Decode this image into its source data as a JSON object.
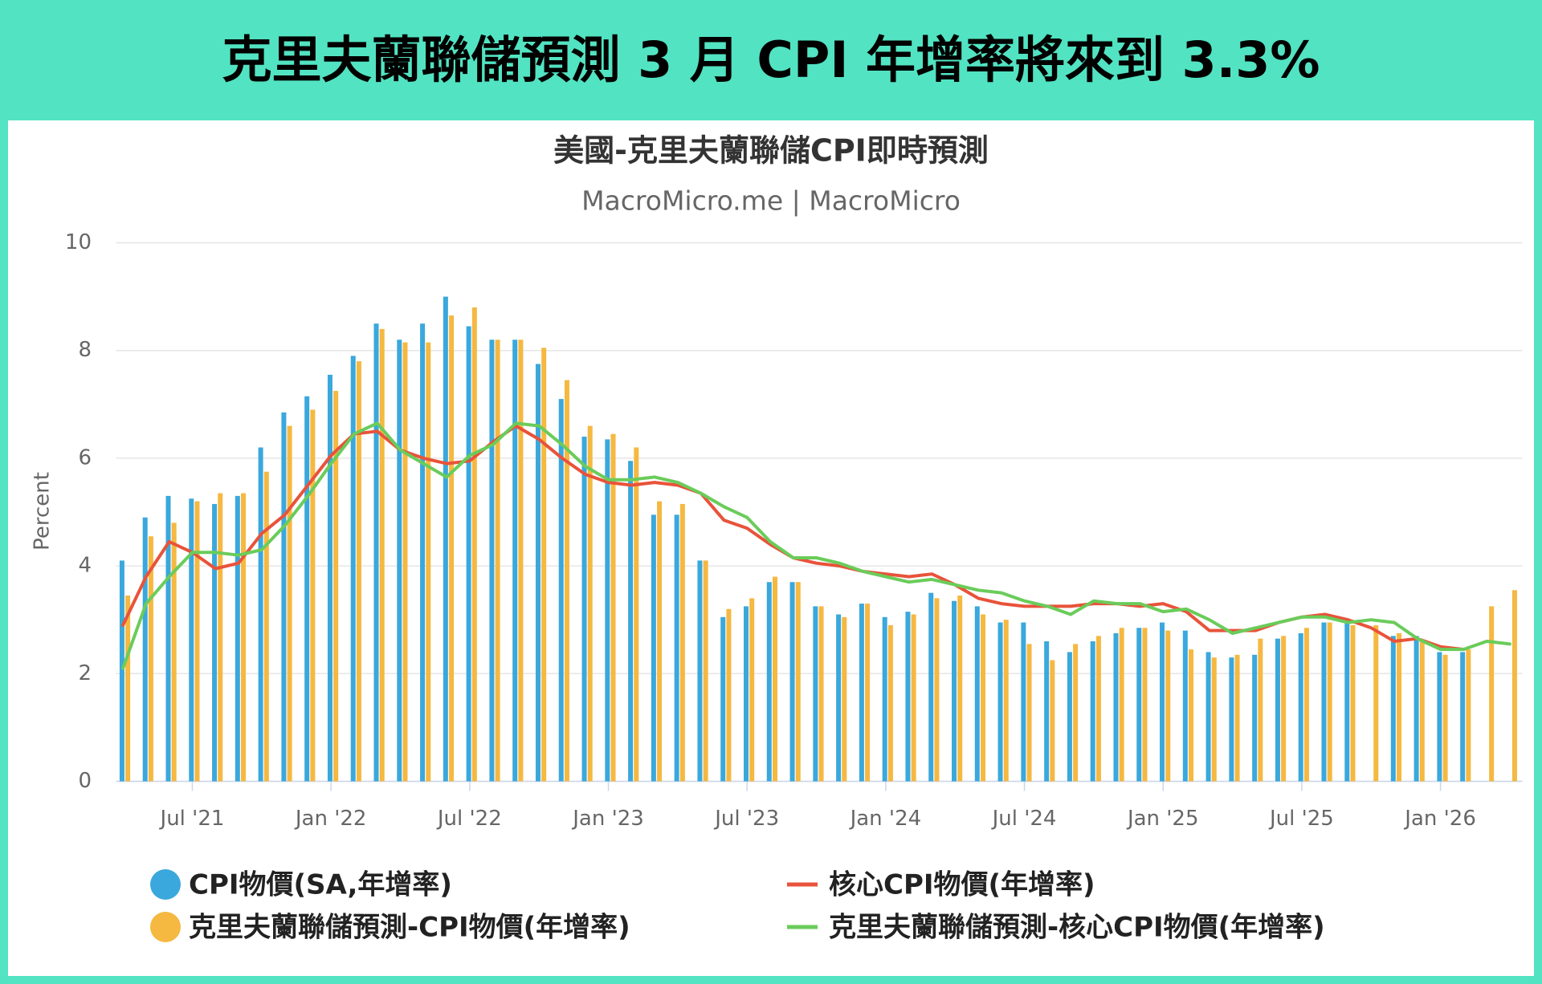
{
  "headline": "克里夫蘭聯儲預測 3 月 CPI 年增率將來到 3.3%",
  "chart_data": {
    "type": "bar",
    "title": "美國-克里夫蘭聯儲CPI即時預測",
    "subtitle": "MacroMicro.me | MacroMicro",
    "y_label": "Percent",
    "ylim": [
      0,
      10
    ],
    "yticks": [
      0,
      2,
      4,
      6,
      8,
      10
    ],
    "grid": true,
    "xticks": [
      {
        "value": "2021-07",
        "label": "Jul '21"
      },
      {
        "value": "2022-01",
        "label": "Jan '22"
      },
      {
        "value": "2022-07",
        "label": "Jul '22"
      },
      {
        "value": "2023-01",
        "label": "Jan '23"
      },
      {
        "value": "2023-07",
        "label": "Jul '23"
      },
      {
        "value": "2024-01",
        "label": "Jan '24"
      },
      {
        "value": "2024-07",
        "label": "Jul '24"
      },
      {
        "value": "2025-01",
        "label": "Jan '25"
      },
      {
        "value": "2025-07",
        "label": "Jul '25"
      },
      {
        "value": "2026-01",
        "label": "Jan '26"
      }
    ],
    "categories": [
      "2021-04",
      "2021-05",
      "2021-06",
      "2021-07",
      "2021-08",
      "2021-09",
      "2021-10",
      "2021-11",
      "2021-12",
      "2022-01",
      "2022-02",
      "2022-03",
      "2022-04",
      "2022-05",
      "2022-06",
      "2022-07",
      "2022-08",
      "2022-09",
      "2022-10",
      "2022-11",
      "2022-12",
      "2023-01",
      "2023-02",
      "2023-03",
      "2023-04",
      "2023-05",
      "2023-06",
      "2023-07",
      "2023-08",
      "2023-09",
      "2023-10",
      "2023-11",
      "2023-12",
      "2024-01",
      "2024-02",
      "2024-03",
      "2024-04",
      "2024-05",
      "2024-06",
      "2024-07",
      "2024-08",
      "2024-09",
      "2024-10",
      "2024-11",
      "2024-12",
      "2025-01",
      "2025-02",
      "2025-03",
      "2025-04",
      "2025-05",
      "2025-06",
      "2025-07",
      "2025-08",
      "2025-09",
      "2025-10",
      "2025-11",
      "2025-12",
      "2026-01",
      "2026-02",
      "2026-03",
      "2026-04"
    ],
    "series": [
      {
        "name": "CPI物價(SA,年增率)",
        "type": "bar",
        "color": "#3aa8dc",
        "values": [
          4.1,
          4.9,
          5.3,
          5.25,
          5.15,
          5.3,
          6.2,
          6.85,
          7.15,
          7.55,
          7.9,
          8.5,
          8.2,
          8.5,
          9.0,
          8.45,
          8.2,
          8.2,
          7.75,
          7.1,
          6.4,
          6.35,
          5.95,
          4.95,
          4.95,
          4.1,
          3.05,
          3.25,
          3.7,
          3.7,
          3.25,
          3.1,
          3.3,
          3.05,
          3.15,
          3.5,
          3.35,
          3.25,
          2.95,
          2.95,
          2.6,
          2.4,
          2.6,
          2.75,
          2.85,
          2.95,
          2.8,
          2.4,
          2.3,
          2.35,
          2.65,
          2.75,
          2.95,
          3.0,
          null,
          2.7,
          2.7,
          2.4,
          2.4,
          null,
          null
        ]
      },
      {
        "name": "克里夫蘭聯儲預測-CPI物價(年增率)",
        "type": "bar",
        "color": "#f5b841",
        "values": [
          3.45,
          4.55,
          4.8,
          5.2,
          5.35,
          5.35,
          5.75,
          6.6,
          6.9,
          7.25,
          7.8,
          8.4,
          8.15,
          8.15,
          8.65,
          8.8,
          8.2,
          8.2,
          8.05,
          7.45,
          6.6,
          6.45,
          6.2,
          5.2,
          5.15,
          4.1,
          3.2,
          3.4,
          3.8,
          3.7,
          3.25,
          3.05,
          3.3,
          2.9,
          3.1,
          3.4,
          3.45,
          3.1,
          3.0,
          2.55,
          2.25,
          2.55,
          2.7,
          2.85,
          2.85,
          2.8,
          2.45,
          2.3,
          2.35,
          2.65,
          2.7,
          2.85,
          2.95,
          2.9,
          2.9,
          2.75,
          2.6,
          2.35,
          2.45,
          3.25,
          3.55
        ]
      },
      {
        "name": "核心CPI物價(年增率)",
        "type": "line",
        "color": "#e8533a",
        "values": [
          2.9,
          3.8,
          4.45,
          4.25,
          3.95,
          4.05,
          4.6,
          4.95,
          5.5,
          6.05,
          6.45,
          6.5,
          6.15,
          6.0,
          5.9,
          5.95,
          6.3,
          6.6,
          6.35,
          6.0,
          5.7,
          5.55,
          5.5,
          5.55,
          5.5,
          5.35,
          4.85,
          4.7,
          4.4,
          4.15,
          4.05,
          4.0,
          3.9,
          3.85,
          3.8,
          3.85,
          3.65,
          3.4,
          3.3,
          3.25,
          3.25,
          3.25,
          3.3,
          3.3,
          3.25,
          3.3,
          3.15,
          2.8,
          2.8,
          2.8,
          2.95,
          3.05,
          3.1,
          3.0,
          2.85,
          2.6,
          2.65,
          2.5,
          2.45,
          null,
          null
        ]
      },
      {
        "name": "克里夫蘭聯儲預測-核心CPI物價(年增率)",
        "type": "line",
        "color": "#6acc5a",
        "values": [
          2.1,
          3.3,
          3.8,
          4.25,
          4.25,
          4.2,
          4.3,
          4.75,
          5.3,
          5.9,
          6.45,
          6.65,
          6.15,
          5.9,
          5.65,
          6.05,
          6.25,
          6.65,
          6.6,
          6.25,
          5.85,
          5.6,
          5.6,
          5.65,
          5.55,
          5.35,
          5.1,
          4.9,
          4.45,
          4.15,
          4.15,
          4.05,
          3.9,
          3.8,
          3.7,
          3.75,
          3.65,
          3.55,
          3.5,
          3.35,
          3.25,
          3.1,
          3.35,
          3.3,
          3.3,
          3.15,
          3.2,
          3.0,
          2.75,
          2.85,
          2.95,
          3.05,
          3.05,
          2.95,
          3.0,
          2.95,
          2.65,
          2.45,
          2.45,
          2.6,
          2.55
        ]
      }
    ]
  }
}
